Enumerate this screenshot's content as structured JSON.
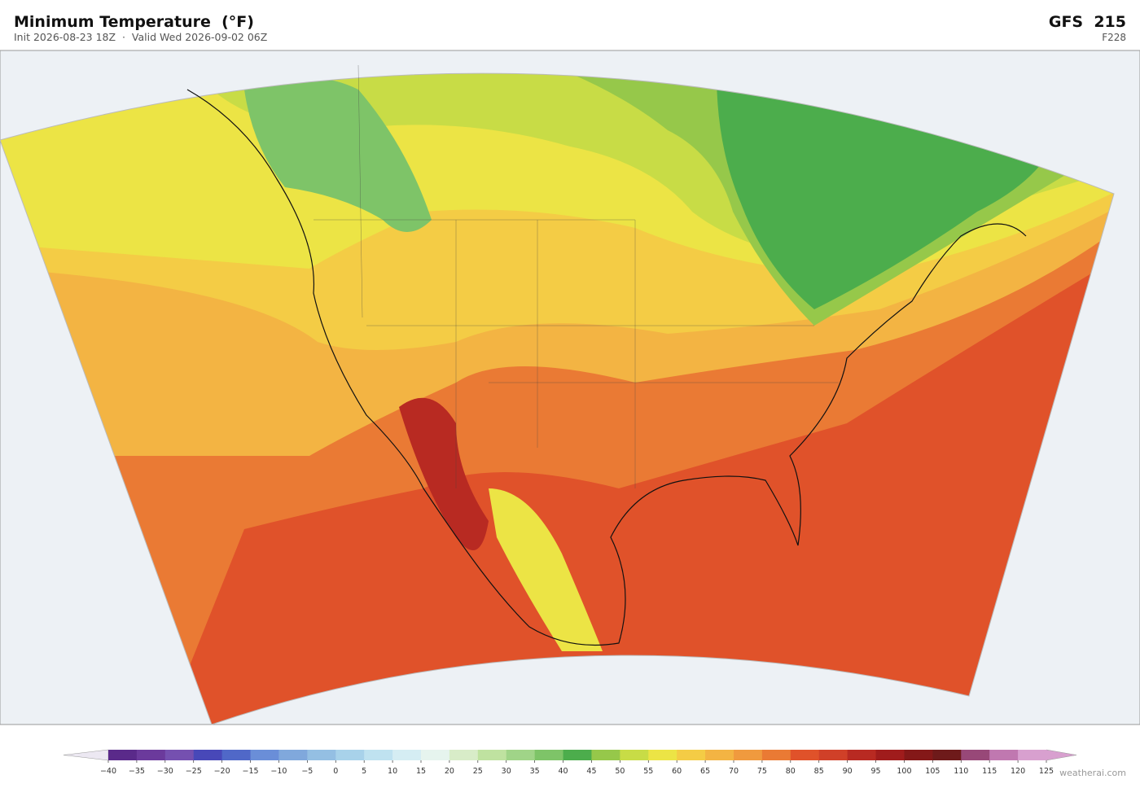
{
  "header": {
    "title": "Minimum Temperature  (°F)",
    "subtitle": "Init 2026-08-23 18Z  ·  Valid Wed 2026-09-02 06Z",
    "model": "GFS  215",
    "forecast_hour": "F228"
  },
  "colorbar": {
    "ticks": [
      {
        "value": -40,
        "label": "−40"
      },
      {
        "value": -35,
        "label": "−35"
      },
      {
        "value": -30,
        "label": "−30"
      },
      {
        "value": -25,
        "label": "−25"
      },
      {
        "value": -20,
        "label": "−20"
      },
      {
        "value": -15,
        "label": "−15"
      },
      {
        "value": -10,
        "label": "−10"
      },
      {
        "value": -5,
        "label": "−5"
      },
      0,
      5,
      10,
      15,
      20,
      25,
      30,
      35,
      40,
      45,
      50,
      55,
      60,
      65,
      70,
      75,
      80,
      85,
      90,
      95,
      100,
      105,
      110,
      115,
      120,
      125
    ],
    "colors": [
      "#5a2a8a",
      "#6b3a9c",
      "#7550b0",
      "#4848b8",
      "#5068c8",
      "#6a8ed8",
      "#80a8dc",
      "#94bfe3",
      "#a8d2ea",
      "#bfe2f0",
      "#d5edf3",
      "#e6f4ee",
      "#d8ecc8",
      "#bfe2a0",
      "#a0d488",
      "#7ec468",
      "#4cad4c",
      "#96c84a",
      "#c8dc46",
      "#ece445",
      "#f4cc45",
      "#f3b443",
      "#f09a3e",
      "#ea7a34",
      "#e0522a",
      "#d04028",
      "#b82a22",
      "#a01c1c",
      "#841818",
      "#6e1a1a",
      "#984878",
      "#c078b0",
      "#d8a0cf"
    ],
    "under_color": "#ece8f2",
    "over_color": "#d8a0cf"
  },
  "watermark": "weatherai.com"
}
